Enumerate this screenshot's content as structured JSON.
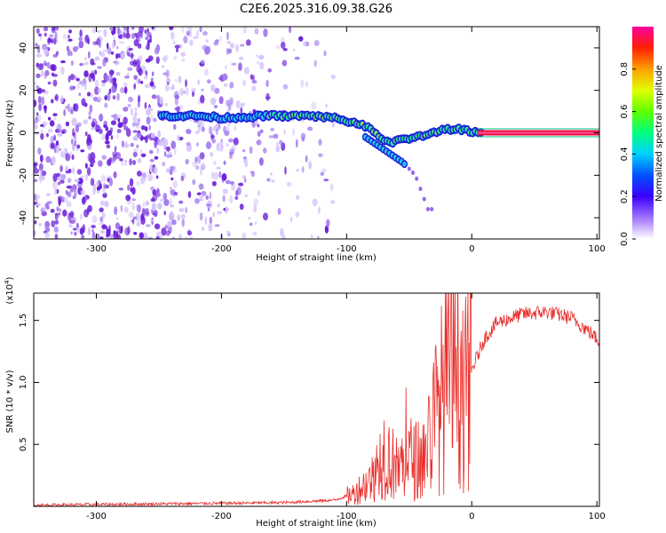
{
  "title": "C2E6.2025.316.09.38.G26",
  "chart_data": [
    {
      "type": "heatmap",
      "name": "spectrogram",
      "xlabel": "Height of straight line (km)",
      "ylabel": "Frequency (Hz)",
      "xlim": [
        -350,
        102
      ],
      "ylim": [
        -50,
        50
      ],
      "xticks": [
        -300,
        -200,
        -100,
        0,
        100
      ],
      "yticks": [
        -40,
        -20,
        0,
        20,
        40
      ],
      "colorbar": {
        "label": "Normalized spectral amplitude",
        "range": [
          0,
          1
        ],
        "ticks": [
          "0.0",
          "0.2",
          "0.4",
          "0.6",
          "0.8"
        ],
        "tick_values": [
          0.0,
          0.2,
          0.4,
          0.6,
          0.8
        ]
      },
      "track": {
        "x": [
          -250,
          -220,
          -200,
          -160,
          -130,
          -110,
          -95,
          -85,
          -75,
          -65,
          -55,
          -45,
          -35,
          -25,
          -15,
          -5,
          5,
          102
        ],
        "y": [
          8,
          8,
          7,
          8,
          8,
          7,
          5,
          3,
          -1,
          -5,
          -3,
          -2,
          -1,
          1,
          2,
          1,
          0,
          0
        ]
      },
      "branch": {
        "x": [
          -85,
          -75,
          -65,
          -55,
          -45,
          -35
        ],
        "y": [
          -2,
          -6,
          -10,
          -14,
          -20,
          -36
        ]
      }
    },
    {
      "type": "line",
      "name": "snr",
      "xlabel": "Height of straight line (km)",
      "ylabel": "SNR (10 * v/v)",
      "yscale_label": "(x10^4)",
      "xlim": [
        -350,
        102
      ],
      "ylim": [
        0,
        1.72
      ],
      "xticks": [
        -300,
        -200,
        -100,
        0,
        100
      ],
      "yticks": [
        0.5,
        1.0,
        1.5
      ],
      "ytick_labels": [
        "0.5",
        "1.0",
        "1.5"
      ],
      "color": "#e8302c",
      "envelope": {
        "x": [
          -350,
          -250,
          -150,
          -110,
          -95,
          -80,
          -70,
          -60,
          -50,
          -40,
          -30,
          -20,
          -10,
          -5,
          0,
          10,
          20,
          40,
          60,
          80,
          95,
          102
        ],
        "y": [
          0.01,
          0.02,
          0.03,
          0.05,
          0.1,
          0.22,
          0.45,
          0.3,
          0.4,
          0.35,
          0.7,
          1.0,
          1.1,
          0.9,
          1.1,
          1.35,
          1.48,
          1.55,
          1.57,
          1.52,
          1.4,
          1.33
        ]
      }
    }
  ]
}
